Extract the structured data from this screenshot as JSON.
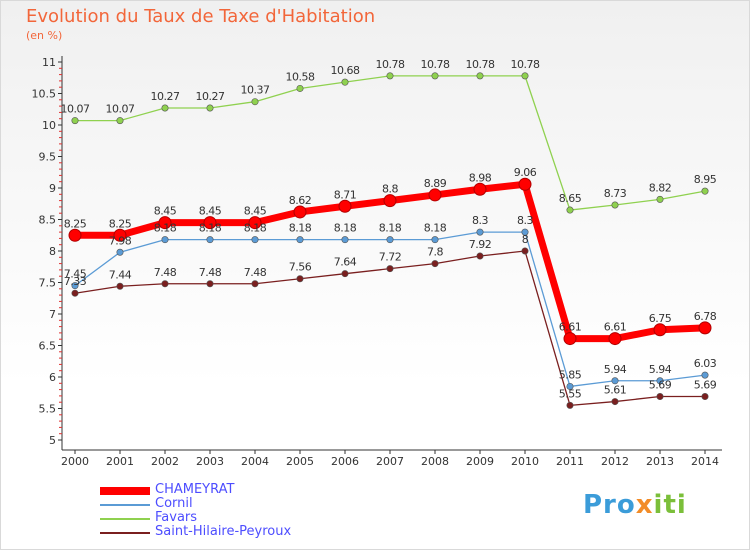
{
  "title": "Evolution du Taux de Taxe d'Habitation",
  "unit": "(en %)",
  "logo": {
    "p1": "Pro",
    "p2": "x",
    "p3": "iti"
  },
  "colors": {
    "title": "#f2663a",
    "axis": "#333333",
    "legend_text": "#4d4dff",
    "grid": "#d9d9d9"
  },
  "chart_data": {
    "type": "line",
    "title": "Evolution du Taux de Taxe d'Habitation",
    "subtitle": "(en %)",
    "x": [
      2000,
      2001,
      2002,
      2003,
      2004,
      2005,
      2006,
      2007,
      2008,
      2009,
      2010,
      2011,
      2012,
      2013,
      2014
    ],
    "ylim": [
      5,
      11
    ],
    "yticks": [
      "5",
      "5.5",
      "6",
      "6.5",
      "7",
      "7.5",
      "8",
      "8.5",
      "9",
      "9.5",
      "10",
      "10.5",
      "11"
    ],
    "grid": false,
    "legend_position": "bottom-left",
    "series": [
      {
        "name": "CHAMEYRAT",
        "color": "#ff0000",
        "width": "thick",
        "values": [
          8.25,
          8.25,
          8.45,
          8.45,
          8.45,
          8.62,
          8.71,
          8.8,
          8.89,
          8.98,
          9.06,
          6.61,
          6.61,
          6.75,
          6.78
        ],
        "labels": [
          "8.25",
          "8.25",
          "8.45",
          "8.45",
          "8.45",
          "8.62",
          "8.71",
          "8.8",
          "8.89",
          "8.98",
          "9.06",
          "6.61",
          "6.61",
          "6.75",
          "6.78"
        ]
      },
      {
        "name": "Cornil",
        "color": "#5b9bd5",
        "width": "thin",
        "values": [
          7.45,
          7.98,
          8.18,
          8.18,
          8.18,
          8.18,
          8.18,
          8.18,
          8.18,
          8.3,
          8.3,
          5.85,
          5.94,
          5.94,
          6.03
        ],
        "labels": [
          "7.45",
          "7.98",
          "8.18",
          "8.18",
          "8.18",
          "8.18",
          "8.18",
          "8.18",
          "8.18",
          "8.3",
          "8.3",
          "5.85",
          "5.94",
          "5.94",
          "6.03"
        ]
      },
      {
        "name": "Favars",
        "color": "#8fd14f",
        "width": "thin",
        "values": [
          10.07,
          10.07,
          10.27,
          10.27,
          10.37,
          10.58,
          10.68,
          10.78,
          10.78,
          10.78,
          10.78,
          8.65,
          8.73,
          8.82,
          8.95
        ],
        "labels": [
          "10.07",
          "10.07",
          "10.27",
          "10.27",
          "10.37",
          "10.58",
          "10.68",
          "10.78",
          "10.78",
          "10.78",
          "10.78",
          "8.65",
          "8.73",
          "8.82",
          "8.95"
        ]
      },
      {
        "name": "Saint-Hilaire-Peyroux",
        "color": "#7a1f1f",
        "width": "thin",
        "values": [
          7.33,
          7.44,
          7.48,
          7.48,
          7.48,
          7.56,
          7.64,
          7.72,
          7.8,
          7.92,
          8.0,
          5.55,
          5.61,
          5.69,
          5.69
        ],
        "labels": [
          "7.33",
          "7.44",
          "7.48",
          "7.48",
          "7.48",
          "7.56",
          "7.64",
          "7.72",
          "7.8",
          "7.92",
          "8",
          "5.55",
          "5.61",
          "5.69",
          "5.69"
        ]
      }
    ]
  }
}
